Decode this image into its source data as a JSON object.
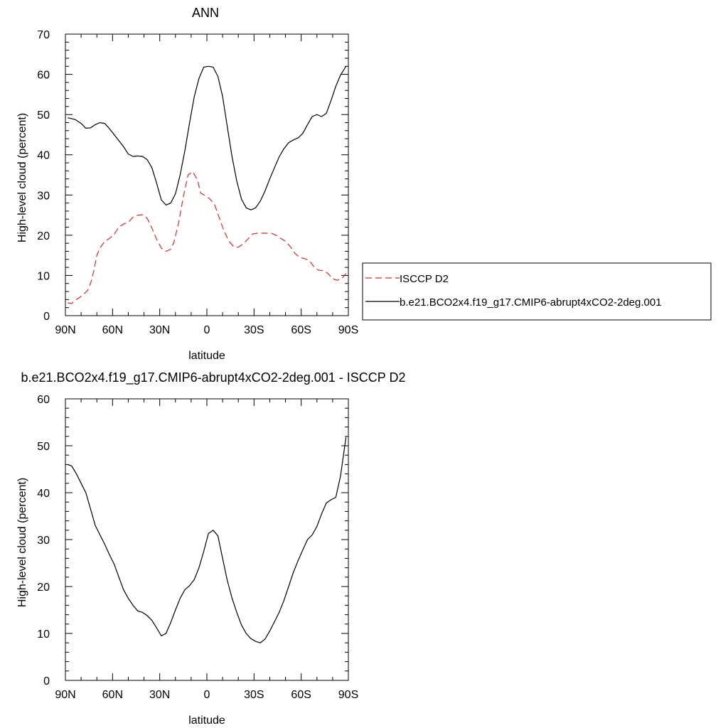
{
  "chart_data": [
    {
      "type": "line",
      "title": "ANN",
      "xlabel": "latitude",
      "ylabel": "High-level cloud (percent)",
      "xlim": [
        -90,
        90
      ],
      "ylim": [
        0,
        70
      ],
      "x_ticks": [
        -90,
        -60,
        -30,
        0,
        30,
        60,
        90
      ],
      "x_tick_labels": [
        "90N",
        "60N",
        "30N",
        "0",
        "30S",
        "60S",
        "90S"
      ],
      "y_ticks": [
        0,
        10,
        20,
        30,
        40,
        50,
        60,
        70
      ],
      "y_tick_labels": [
        "0",
        "10",
        "20",
        "30",
        "40",
        "50",
        "60",
        "70"
      ],
      "grid": false,
      "legend_placement": "right",
      "series": [
        {
          "name": "ISCCP D2",
          "color": "#e8242a",
          "dash": "dashed",
          "x": [
            -88.5,
            -86,
            -84,
            -81,
            -78,
            -76,
            -74,
            -72,
            -70,
            -68,
            -65,
            -62,
            -59,
            -56,
            -53,
            -50,
            -47,
            -44,
            -41,
            -38,
            -35,
            -32,
            -29,
            -26,
            -23,
            -21,
            -18,
            -15,
            -12,
            -9,
            -6,
            -4,
            -1,
            2,
            5,
            8,
            11,
            14,
            17,
            20,
            23,
            26,
            29,
            32,
            35,
            38,
            41,
            44,
            47,
            50,
            53,
            56,
            59,
            62,
            65,
            68,
            71,
            74,
            77,
            80,
            83,
            86,
            88.5
          ],
          "y": [
            3.2,
            3.0,
            3.8,
            4.5,
            5.5,
            6.2,
            8.0,
            11.0,
            15.0,
            16.8,
            18.5,
            19.2,
            20.2,
            22.0,
            22.8,
            23.2,
            24.5,
            25.0,
            25.1,
            24.2,
            21.8,
            19.0,
            16.8,
            16.0,
            16.5,
            18.2,
            23.0,
            29.5,
            35.0,
            35.8,
            33.8,
            30.5,
            29.8,
            29.0,
            27.5,
            24.2,
            21.0,
            18.5,
            17.2,
            17.0,
            17.8,
            19.0,
            20.3,
            20.5,
            20.5,
            20.5,
            20.5,
            20.0,
            19.2,
            18.5,
            17.2,
            15.5,
            14.5,
            14.2,
            13.8,
            12.2,
            11.3,
            11.2,
            10.5,
            9.2,
            8.8,
            9.3,
            10.5
          ]
        },
        {
          "name": "b.e21.BCO2x4.f19_g17.CMIP6-abrupt4xCO2-2deg.001",
          "color": "#000000",
          "dash": "solid",
          "x": [
            -88.5,
            -84,
            -80,
            -77,
            -74,
            -71,
            -68,
            -65,
            -62,
            -59,
            -56,
            -53,
            -50,
            -47,
            -44,
            -41,
            -38,
            -35,
            -32,
            -29,
            -26,
            -23,
            -20,
            -17,
            -14,
            -11,
            -8,
            -5,
            -2,
            1,
            4,
            7,
            10,
            13,
            16,
            19,
            22,
            25,
            28,
            31,
            34,
            37,
            40,
            43,
            46,
            49,
            52,
            55,
            58,
            61,
            64,
            67,
            70,
            73,
            76,
            79,
            82,
            85,
            88.5
          ],
          "y": [
            49.2,
            48.8,
            47.8,
            46.6,
            46.7,
            47.5,
            48.0,
            47.8,
            46.5,
            45.0,
            43.5,
            42.0,
            40.2,
            39.6,
            39.7,
            39.6,
            38.8,
            36.8,
            33.0,
            28.8,
            27.5,
            28.0,
            30.3,
            35.0,
            41.0,
            48.0,
            54.5,
            59.0,
            61.8,
            62.0,
            61.8,
            59.5,
            54.5,
            47.0,
            39.5,
            33.5,
            29.0,
            26.8,
            26.3,
            26.8,
            28.5,
            31.0,
            34.0,
            36.8,
            39.5,
            41.5,
            43.0,
            43.7,
            44.2,
            45.3,
            47.5,
            49.5,
            50.0,
            49.5,
            50.3,
            53.5,
            57.0,
            59.8,
            62.0
          ]
        }
      ]
    },
    {
      "type": "line",
      "title": "b.e21.BCO2x4.f19_g17.CMIP6-abrupt4xCO2-2deg.001 - ISCCP D2",
      "xlabel": "latitude",
      "ylabel": "High-level cloud (percent)",
      "xlim": [
        -90,
        90
      ],
      "ylim": [
        0,
        60
      ],
      "x_ticks": [
        -90,
        -60,
        -30,
        0,
        30,
        60,
        90
      ],
      "x_tick_labels": [
        "90N",
        "60N",
        "30N",
        "0",
        "30S",
        "60S",
        "90S"
      ],
      "y_ticks": [
        0,
        10,
        20,
        30,
        40,
        50,
        60
      ],
      "y_tick_labels": [
        "0",
        "10",
        "20",
        "30",
        "40",
        "50",
        "60"
      ],
      "grid": false,
      "series": [
        {
          "color": "#000000",
          "dash": "solid",
          "x": [
            -88.5,
            -86,
            -83,
            -80,
            -77,
            -74,
            -71,
            -68,
            -65,
            -62,
            -59,
            -56,
            -53,
            -50,
            -47,
            -44,
            -41,
            -38,
            -35,
            -32,
            -29,
            -26,
            -23,
            -20,
            -17,
            -14,
            -11,
            -8,
            -5,
            -2,
            1,
            4,
            7,
            10,
            13,
            16,
            19,
            22,
            25,
            28,
            31,
            34,
            37,
            40,
            43,
            46,
            49,
            52,
            55,
            58,
            61,
            64,
            67,
            70,
            73,
            76,
            79,
            82,
            85,
            88.5
          ],
          "y": [
            46.0,
            45.7,
            44.0,
            42.0,
            40.0,
            36.5,
            33.0,
            31.0,
            29.0,
            26.8,
            24.8,
            22.0,
            19.3,
            17.5,
            16.0,
            14.8,
            14.5,
            13.8,
            12.8,
            11.2,
            9.5,
            10.0,
            12.3,
            15.0,
            17.5,
            19.3,
            20.2,
            21.5,
            24.0,
            27.5,
            31.3,
            32.0,
            30.8,
            26.0,
            21.3,
            17.5,
            14.5,
            11.8,
            10.0,
            8.9,
            8.3,
            8.0,
            8.8,
            10.5,
            12.5,
            14.5,
            17.0,
            20.0,
            23.0,
            25.5,
            27.8,
            30.0,
            31.0,
            32.8,
            35.5,
            37.8,
            38.5,
            39.0,
            43.5,
            51.8
          ]
        }
      ]
    }
  ]
}
